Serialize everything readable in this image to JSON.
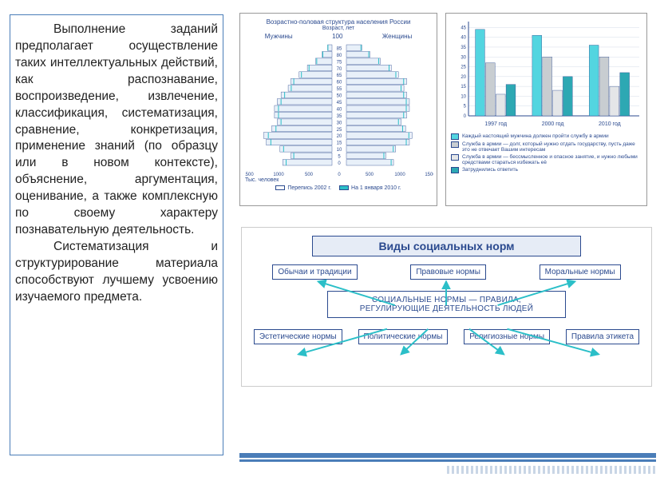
{
  "textPanel": {
    "p1": "Выполнение заданий предполагает осуществление таких интеллектуальных действий, как распознавание, воспроизведение, извлечение, классификация, систематизация, сравнение, конкретизация, применение знаний (по образцу или в новом контексте), объяснение, аргументация, оценивание, а также комплексную по своему характеру познавательную деятельность.",
    "p2": "Систематизация и структурирование материала способствуют лучшему усвоению изучаемого предмета."
  },
  "pyramid": {
    "title": "Возрастно-половая структура населения России",
    "ageHeader": "Возраст, лет",
    "left_label": "Мужчины",
    "right_label": "Женщины",
    "xaxis_label": "Тыс. человек",
    "ages": [
      "85",
      "80",
      "75",
      "70",
      "65",
      "60",
      "55",
      "50",
      "45",
      "40",
      "35",
      "30",
      "25",
      "20",
      "15",
      "10",
      "5",
      "0"
    ],
    "male": [
      80,
      180,
      300,
      450,
      600,
      750,
      800,
      930,
      1000,
      1050,
      1050,
      1000,
      1100,
      1250,
      1200,
      950,
      750,
      900
    ],
    "female": [
      280,
      430,
      620,
      820,
      950,
      1100,
      1050,
      1100,
      1150,
      1150,
      1100,
      1000,
      1080,
      1200,
      1150,
      900,
      720,
      860
    ],
    "xticks": [
      "1500",
      "1000",
      "500",
      "0",
      "500",
      "1000",
      "1500"
    ],
    "fill_color": "#e8f0f9",
    "line_color": "#2b4a8f",
    "overlay_color": "#2bbfc8",
    "legend": [
      {
        "label": "Перепись 2002 г.",
        "sw": "#ffffff"
      },
      {
        "label": "На 1 января 2010 г.",
        "sw": "#2bbfc8"
      }
    ]
  },
  "bars": {
    "ylim": [
      0,
      48
    ],
    "ytick_step": 5,
    "yticks": [
      0,
      5,
      10,
      15,
      20,
      25,
      30,
      35,
      40,
      45
    ],
    "groups": [
      "1997 год",
      "2000 год",
      "2010 год"
    ],
    "series_colors": [
      "#53d5e0",
      "#c8cdd1",
      "#e4e6e8",
      "#2da8b3"
    ],
    "values": [
      [
        44,
        27,
        11,
        16
      ],
      [
        41,
        30,
        13,
        20
      ],
      [
        36,
        30,
        15,
        22
      ]
    ],
    "bar_width": 0.18,
    "grid_color": "#d4dce8",
    "axis_color": "#2b4a8f",
    "legend": [
      {
        "c": "#53d5e0",
        "t": "Каждый настоящий мужчина должен пройти службу в армии"
      },
      {
        "c": "#c8cdd1",
        "t": "Служба в армии — долг, который нужно отдать государству, пусть даже это не отвечает Вашим интересам"
      },
      {
        "c": "#e4e6e8",
        "t": "Служба в армии — бессмысленное и опасное занятие, и нужно любыми средствами стараться избежать её"
      },
      {
        "c": "#2da8b3",
        "t": "Затруднились ответить"
      }
    ]
  },
  "diagram": {
    "title": "Виды социальных норм",
    "topRow": [
      "Обычаи и традиции",
      "Правовые нормы",
      "Моральные нормы"
    ],
    "center": "СОЦИАЛЬНЫЕ НОРМЫ — ПРАВИЛА, РЕГУЛИРУЮЩИЕ ДЕЯТЕЛЬНОСТЬ ЛЮДЕЙ",
    "bottomRow": [
      "Эстетические нормы",
      "Политические нормы",
      "Религиозные нормы",
      "Правила этикета"
    ],
    "border_color": "#2b4a8f",
    "arrow_color": "#2bbfc8"
  }
}
